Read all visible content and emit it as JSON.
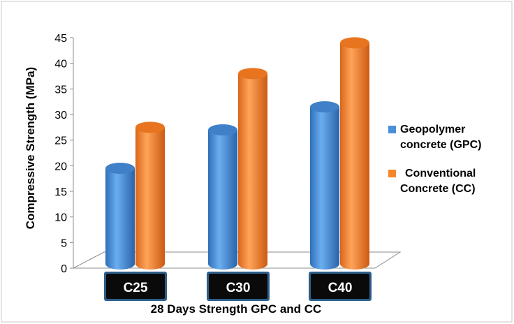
{
  "chart_data": {
    "type": "bar",
    "title": "",
    "xlabel": "28 Days Strength GPC and CC",
    "ylabel": "Compressive Strength (MPa)",
    "ylim": [
      0,
      45
    ],
    "yticks": [
      "0",
      "5",
      "10",
      "15",
      "20",
      "25",
      "30",
      "35",
      "40",
      "45"
    ],
    "categories": [
      "C25",
      "C30",
      "C40"
    ],
    "series": [
      {
        "name": "Geopolymer concrete (GPC)",
        "values": [
          19.5,
          27,
          31.5
        ],
        "color": "#4a8fd9"
      },
      {
        "name": "Conventional Concrete (CC)",
        "values": [
          27.5,
          38,
          44
        ],
        "color": "#f7862a"
      }
    ],
    "legend_position": "right",
    "grid": false,
    "style": "3d-cylinder"
  },
  "legend_lines": [
    [
      "Geopolymer",
      "concrete (GPC)"
    ],
    [
      "Conventional",
      "Concrete (CC)"
    ]
  ]
}
